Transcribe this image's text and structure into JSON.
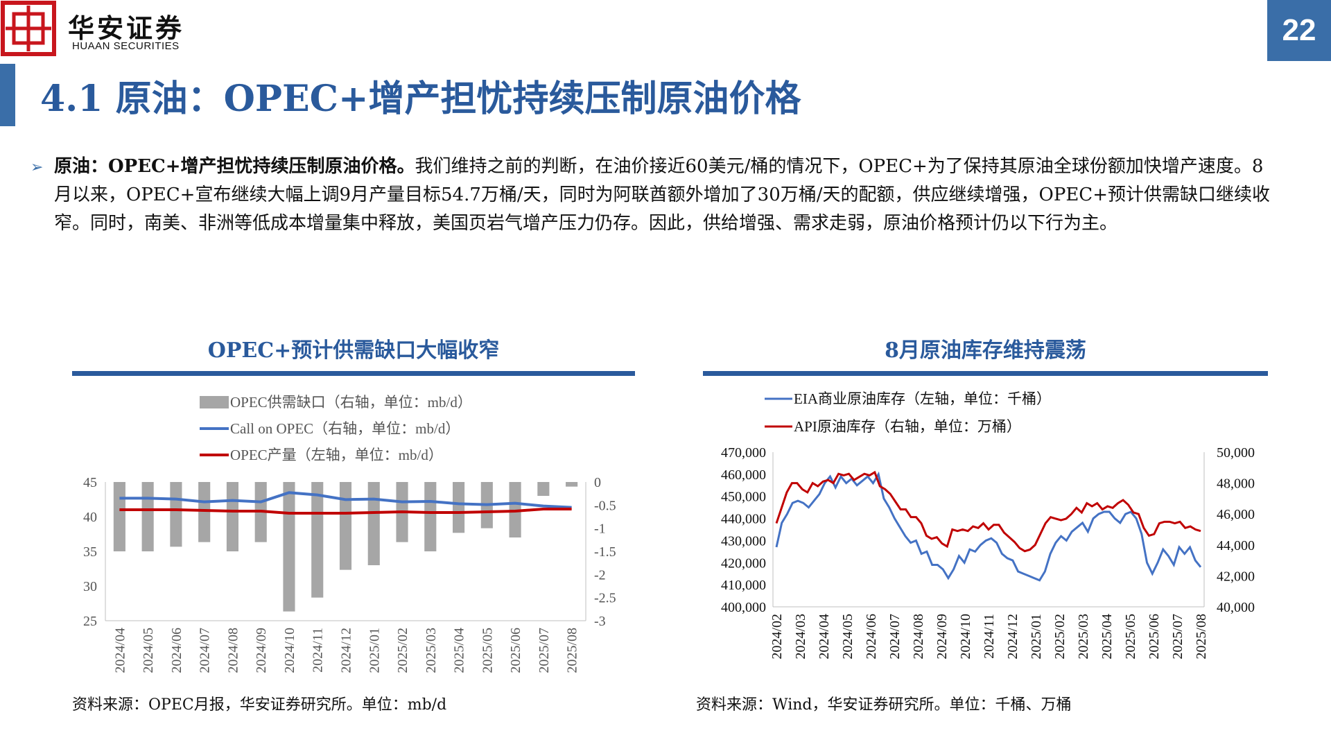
{
  "header": {
    "brand_cn": "华安证券",
    "brand_en": "HUAAN SECURITIES",
    "page_number": "22"
  },
  "title": "4.1 原油：OPEC+增产担忧持续压制原油价格",
  "bullet": {
    "lead": "原油：OPEC+增产担忧持续压制原油价格。",
    "body": "我们维持之前的判断，在油价接近60美元/桶的情况下，OPEC+为了保持其原油全球份额加快增产速度。8月以来，OPEC+宣布继续大幅上调9月产量目标54.7万桶/天，同时为阿联酋额外增加了30万桶/天的配额，供应继续增强，OPEC+预计供需缺口继续收窄。同时，南美、非洲等低成本增量集中释放，美国页岩气增产压力仍存。因此，供给增强、需求走弱，原油价格预计仍以下行为主。"
  },
  "left_chart": {
    "title": "OPEC+预计供需缺口大幅收窄",
    "source": "资料来源：OPEC月报，华安证券研究所。单位：mb/d"
  },
  "right_chart": {
    "title": "8月原油库存维持震荡",
    "source": "资料来源：Wind，华安证券研究所。单位：千桶、万桶"
  },
  "colors": {
    "brand_blue": "#2a5a9c",
    "bar_gray": "#a6a6a6",
    "line_blue": "#4472c4",
    "line_red": "#c00000",
    "logo_red": "#c8161d"
  },
  "chart_data": [
    {
      "type": "bar",
      "categories": [
        "2024/04",
        "2024/05",
        "2024/06",
        "2024/07",
        "2024/08",
        "2024/09",
        "2024/10",
        "2024/11",
        "2024/12",
        "2025/01",
        "2025/02",
        "2025/03",
        "2025/04",
        "2025/05",
        "2025/06",
        "2025/07",
        "2025/08"
      ],
      "series": [
        {
          "name": "OPEC供需缺口（右轴，单位：mb/d）",
          "type": "bar",
          "axis": "right",
          "values": [
            -1.5,
            -1.5,
            -1.4,
            -1.3,
            -1.5,
            -1.3,
            -2.8,
            -2.5,
            -1.9,
            -1.8,
            -1.3,
            -1.5,
            -1.1,
            -1.0,
            -1.2,
            -0.3,
            -0.1
          ]
        },
        {
          "name": "Call on OPEC（右轴，单位：mb/d）",
          "type": "line",
          "axis": "right",
          "values": [
            -0.35,
            -0.35,
            -0.37,
            -0.43,
            -0.4,
            -0.43,
            -0.23,
            -0.28,
            -0.38,
            -0.37,
            -0.43,
            -0.42,
            -0.47,
            -0.49,
            -0.46,
            -0.52,
            -0.55
          ]
        },
        {
          "name": "OPEC产量（左轴，单位：mb/d）",
          "type": "line",
          "axis": "left",
          "values": [
            41.0,
            41.0,
            41.0,
            40.9,
            40.8,
            40.8,
            40.5,
            40.5,
            40.5,
            40.6,
            40.7,
            40.6,
            40.6,
            40.7,
            40.8,
            41.1,
            41.1
          ]
        }
      ],
      "y_left": {
        "ticks": [
          "45",
          "40",
          "35",
          "30",
          "25"
        ],
        "ylim": [
          25,
          45
        ]
      },
      "y_right": {
        "ticks": [
          "0",
          "-0.5",
          "-1",
          "-1.5",
          "-2",
          "-2.5",
          "-3"
        ],
        "ylim": [
          -3,
          0
        ]
      },
      "legend": "top",
      "grid": false
    },
    {
      "type": "line",
      "x_ticks": [
        "2024/02",
        "2024/03",
        "2024/04",
        "2024/05",
        "2024/06",
        "2024/07",
        "2024/08",
        "2024/09",
        "2024/10",
        "2024/11",
        "2024/12",
        "2025/01",
        "2025/02",
        "2025/03",
        "2025/04",
        "2025/05",
        "2025/06",
        "2025/07",
        "2025/08"
      ],
      "series": [
        {
          "name": "EIA商业原油库存（左轴，单位：千桶）",
          "axis": "left",
          "values": [
            427000,
            438000,
            442000,
            447000,
            448000,
            447000,
            445000,
            448000,
            451000,
            456000,
            459000,
            454000,
            459000,
            456000,
            458000,
            455000,
            457000,
            459000,
            456000,
            460000,
            449000,
            445000,
            440000,
            436000,
            432000,
            429000,
            430000,
            424000,
            425000,
            419000,
            419000,
            417000,
            413000,
            417000,
            423000,
            420000,
            426000,
            425000,
            428000,
            430000,
            431000,
            429000,
            424000,
            422000,
            421000,
            416000,
            415000,
            414000,
            413000,
            412000,
            416000,
            424000,
            429000,
            432000,
            430000,
            434000,
            436000,
            438000,
            434000,
            440000,
            442000,
            443000,
            443000,
            440000,
            438000,
            442000,
            443000,
            440000,
            433000,
            420000,
            415000,
            420000,
            426000,
            423000,
            419000,
            427000,
            424000,
            427000,
            421000,
            418000
          ]
        },
        {
          "name": "API原油库存（右轴，单位：万桶）",
          "axis": "right",
          "values": [
            45400,
            46400,
            47400,
            48000,
            48000,
            47600,
            47400,
            48000,
            47800,
            48100,
            48200,
            48000,
            48600,
            48500,
            48600,
            48200,
            48400,
            48600,
            48500,
            48700,
            47800,
            47600,
            47300,
            46800,
            46300,
            46300,
            45800,
            45800,
            45400,
            44600,
            44400,
            44500,
            44100,
            43900,
            45000,
            44900,
            45000,
            44900,
            45200,
            45100,
            45400,
            45000,
            45300,
            45300,
            44800,
            44500,
            44200,
            43800,
            43600,
            43700,
            44000,
            44700,
            45400,
            45800,
            45700,
            45600,
            45700,
            46000,
            46400,
            46100,
            46700,
            46500,
            46700,
            46300,
            46500,
            46400,
            46700,
            46900,
            46600,
            46100,
            46000,
            45100,
            44600,
            44700,
            45400,
            45500,
            45500,
            45400,
            45500,
            45100,
            45200,
            45000,
            44900
          ]
        }
      ],
      "y_left": {
        "ticks": [
          "470,000",
          "460,000",
          "450,000",
          "440,000",
          "430,000",
          "420,000",
          "410,000",
          "400,000"
        ],
        "ylim": [
          400000,
          470000
        ]
      },
      "y_right": {
        "ticks": [
          "50,000",
          "48,000",
          "46,000",
          "44,000",
          "42,000",
          "40,000"
        ],
        "ylim": [
          40000,
          50000
        ]
      },
      "legend": "top",
      "grid": false
    }
  ]
}
